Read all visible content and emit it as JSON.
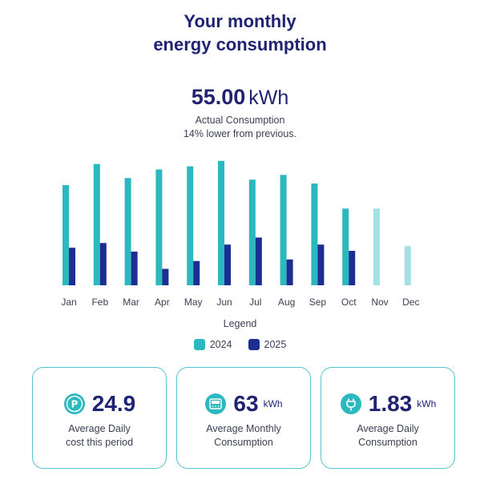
{
  "header": {
    "title_line1": "Your monthly",
    "title_line2": "energy consumption"
  },
  "summary": {
    "value": "55.00",
    "unit": "kWh",
    "label": "Actual Consumption",
    "change": "14% lower from previous."
  },
  "legend": {
    "title": "Legend",
    "items": [
      {
        "label": "2024",
        "color": "#2bb8be"
      },
      {
        "label": "2025",
        "color": "#1c2e8f"
      }
    ]
  },
  "chart_data": {
    "type": "bar",
    "categories": [
      "Jan",
      "Feb",
      "Mar",
      "Apr",
      "May",
      "Jun",
      "Jul",
      "Aug",
      "Sep",
      "Oct",
      "Nov",
      "Dec"
    ],
    "series": [
      {
        "name": "2024",
        "color": "#2bb8be",
        "values": [
          128,
          155,
          137,
          148,
          152,
          159,
          135,
          141,
          130,
          98,
          98,
          50
        ]
      },
      {
        "name": "2025",
        "color": "#1c2e8f",
        "values": [
          48,
          54,
          43,
          21,
          31,
          52,
          61,
          33,
          52,
          44,
          null,
          null
        ]
      }
    ],
    "faded_from_index": 10,
    "faded_color": "#a3e1e3",
    "ylim": [
      0,
      170
    ],
    "grid": false
  },
  "cards": [
    {
      "icon": "price-tag-icon",
      "value": "24.9",
      "unit": "",
      "label_line1": "Average Daily",
      "label_line2": "cost this period"
    },
    {
      "icon": "meter-icon",
      "value": "63",
      "unit": "kWh",
      "label_line1": "Average Monthly",
      "label_line2": "Consumption"
    },
    {
      "icon": "plug-icon",
      "value": "1.83",
      "unit": "kWh",
      "label_line1": "Average Daily",
      "label_line2": "Consumption"
    }
  ]
}
